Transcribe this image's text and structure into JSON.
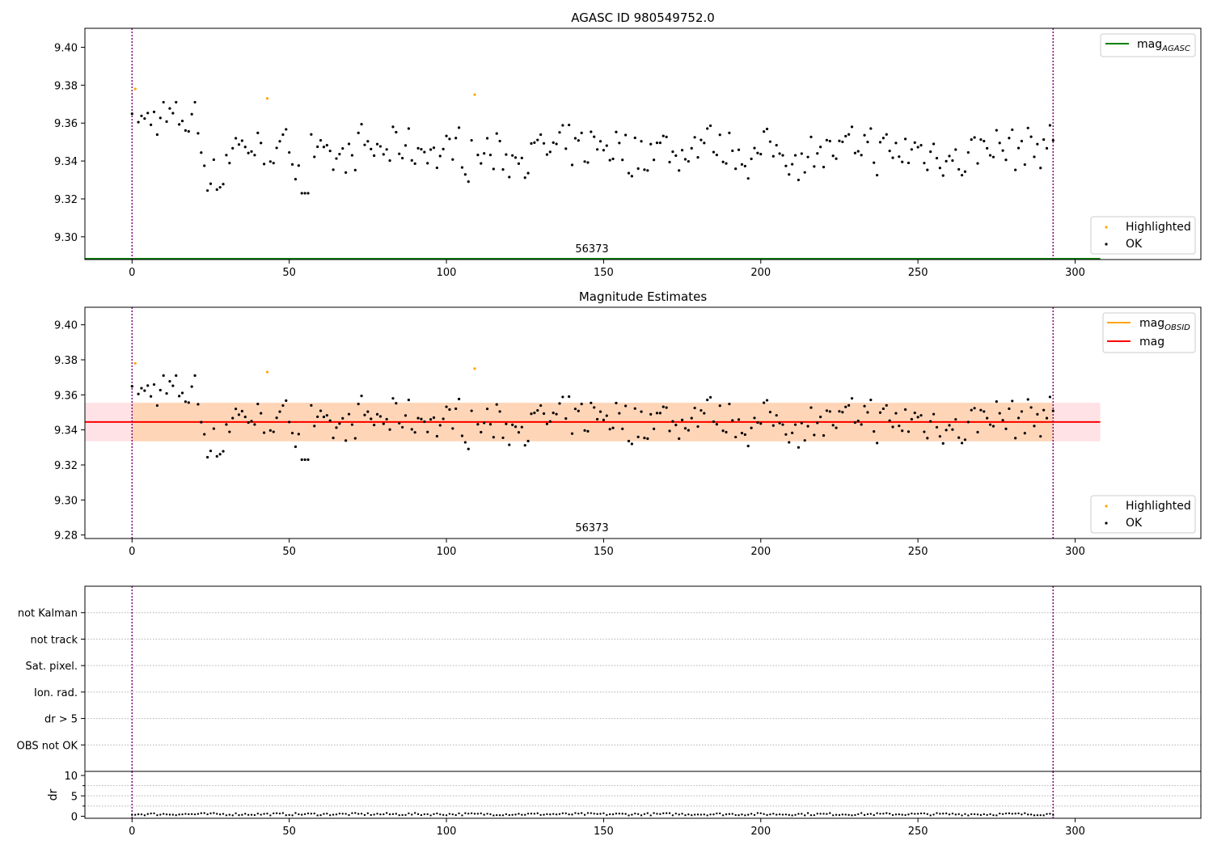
{
  "panels": {
    "top": {
      "title": "AGASC ID 980549752.0",
      "obsid_label": "56373",
      "legend_mag": {
        "base": "mag",
        "sub": "AGASC"
      },
      "legend_highlighted": "Highlighted",
      "legend_ok": "OK"
    },
    "middle": {
      "title": "Magnitude Estimates",
      "obsid_label": "56373",
      "legend_obsid": {
        "base": "mag",
        "sub": "OBSID"
      },
      "legend_mag": "mag",
      "legend_highlighted": "Highlighted",
      "legend_ok": "OK"
    },
    "flags": {
      "labels": [
        "not Kalman",
        "not track",
        "Sat. pixel.",
        "Ion. rad.",
        "dr > 5",
        "OBS not OK"
      ]
    },
    "dr": {
      "ylabel": "dr"
    }
  },
  "chart_data": [
    {
      "type": "scatter",
      "title": "AGASC ID 980549752.0",
      "xlim": [
        -15,
        340
      ],
      "ylim": [
        9.288,
        9.41
      ],
      "xticks": [
        0,
        50,
        100,
        150,
        200,
        250,
        300
      ],
      "yticks": [
        9.3,
        9.32,
        9.34,
        9.36,
        9.38,
        9.4
      ],
      "ytick_labels": [
        "9.30",
        "9.32",
        "9.34",
        "9.36",
        "9.38",
        "9.40"
      ],
      "series": [
        {
          "name": "OK",
          "color": "#000000"
        },
        {
          "name": "Highlighted",
          "color": "#ffa500",
          "points": [
            [
              1,
              9.378
            ],
            [
              43,
              9.373
            ],
            [
              109,
              9.375
            ]
          ]
        },
        {
          "name": "mag_AGASC",
          "color": "#008000",
          "value": 9.288
        }
      ],
      "vlines": [
        0,
        293
      ],
      "legend": "top-right"
    },
    {
      "type": "scatter",
      "title": "Magnitude Estimates",
      "xlim": [
        -15,
        340
      ],
      "ylim": [
        9.278,
        9.41
      ],
      "xticks": [
        0,
        50,
        100,
        150,
        200,
        250,
        300
      ],
      "yticks": [
        9.28,
        9.3,
        9.32,
        9.34,
        9.36,
        9.38,
        9.4
      ],
      "ytick_labels": [
        "9.28",
        "9.30",
        "9.32",
        "9.34",
        "9.36",
        "9.38",
        "9.40"
      ],
      "series": [
        {
          "name": "OK",
          "color": "#000000"
        },
        {
          "name": "Highlighted",
          "color": "#ffa500",
          "points": [
            [
              1,
              9.378
            ],
            [
              43,
              9.373
            ],
            [
              109,
              9.375
            ]
          ]
        },
        {
          "name": "mag_OBSID",
          "color": "#ffa500",
          "value": 9.3445,
          "band": [
            9.3335,
            9.3555
          ],
          "x_range": [
            0,
            293
          ]
        },
        {
          "name": "mag",
          "color": "#ff0000",
          "value": 9.3445,
          "band": [
            9.3335,
            9.3555
          ]
        }
      ],
      "vlines": [
        0,
        293
      ],
      "legend": "top-right"
    },
    {
      "type": "scatter",
      "title": "",
      "xlim": [
        -15,
        340
      ],
      "ylim": [
        0,
        7
      ],
      "categories": [
        "not Kalman",
        "not track",
        "Sat. pixel.",
        "Ion. rad.",
        "dr > 5",
        "OBS not OK"
      ],
      "flag_counts": [
        0,
        0,
        0,
        0,
        0,
        0
      ],
      "grid": true,
      "vlines": [
        0,
        293
      ]
    },
    {
      "type": "scatter",
      "title": "",
      "xlim": [
        -15,
        340
      ],
      "ylim": [
        -0.5,
        11
      ],
      "yticks": [
        0,
        5,
        10
      ],
      "ylabel": "dr",
      "xticks": [
        0,
        50,
        100,
        150,
        200,
        250,
        300
      ],
      "dr_range": [
        0.2,
        0.8
      ],
      "vlines": [
        0,
        293
      ]
    }
  ]
}
